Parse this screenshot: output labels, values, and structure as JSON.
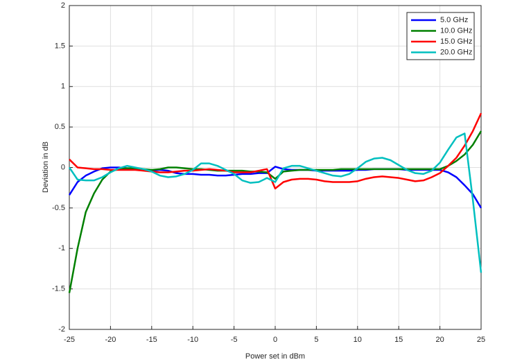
{
  "chart_data": {
    "type": "line",
    "xlabel": "Power set in dBm",
    "ylabel": "Deviation  in dB",
    "xlim": [
      -25,
      25
    ],
    "ylim": [
      -2,
      2
    ],
    "xticks": [
      -25,
      -20,
      -15,
      -10,
      -5,
      0,
      5,
      10,
      15,
      20,
      25
    ],
    "yticks": [
      -2,
      -1.5,
      -1,
      -0.5,
      0,
      0.5,
      1,
      1.5,
      2
    ],
    "grid": true,
    "legend": "top-right",
    "x": [
      -25,
      -24,
      -23,
      -22,
      -21,
      -20,
      -19,
      -18,
      -17,
      -16,
      -15,
      -14,
      -13,
      -12,
      -11,
      -10,
      -9,
      -8,
      -7,
      -6,
      -5,
      -4,
      -3,
      -2,
      -1,
      0,
      1,
      2,
      3,
      4,
      5,
      6,
      7,
      8,
      9,
      10,
      11,
      12,
      13,
      14,
      15,
      16,
      17,
      18,
      19,
      20,
      21,
      22,
      23,
      24,
      25
    ],
    "series": [
      {
        "name": "5.0 GHz",
        "color": "#0000ff",
        "values": [
          -0.34,
          -0.18,
          -0.1,
          -0.05,
          -0.01,
          0.0,
          0.0,
          -0.01,
          -0.02,
          -0.03,
          -0.04,
          -0.03,
          -0.04,
          -0.07,
          -0.08,
          -0.08,
          -0.09,
          -0.09,
          -0.1,
          -0.1,
          -0.09,
          -0.08,
          -0.08,
          -0.07,
          -0.07,
          0.01,
          -0.02,
          -0.03,
          -0.03,
          -0.03,
          -0.04,
          -0.04,
          -0.04,
          -0.04,
          -0.04,
          -0.03,
          -0.03,
          -0.02,
          -0.02,
          -0.02,
          -0.02,
          -0.03,
          -0.03,
          -0.03,
          -0.03,
          -0.03,
          -0.06,
          -0.12,
          -0.22,
          -0.33,
          -0.5
        ]
      },
      {
        "name": "10.0 GHz",
        "color": "#008000",
        "values": [
          -1.55,
          -1.0,
          -0.55,
          -0.32,
          -0.15,
          -0.05,
          -0.02,
          -0.01,
          -0.01,
          -0.02,
          -0.03,
          -0.02,
          0.0,
          0.0,
          -0.01,
          -0.02,
          -0.02,
          -0.03,
          -0.04,
          -0.04,
          -0.04,
          -0.04,
          -0.05,
          -0.05,
          -0.06,
          -0.14,
          -0.05,
          -0.04,
          -0.03,
          -0.03,
          -0.03,
          -0.03,
          -0.03,
          -0.02,
          -0.02,
          -0.02,
          -0.02,
          -0.02,
          -0.02,
          -0.02,
          -0.02,
          -0.02,
          -0.02,
          -0.02,
          -0.02,
          -0.02,
          0.02,
          0.08,
          0.16,
          0.28,
          0.45
        ]
      },
      {
        "name": "15.0 GHz",
        "color": "#ff0000",
        "values": [
          0.1,
          0.0,
          -0.01,
          -0.02,
          -0.02,
          -0.03,
          -0.03,
          -0.03,
          -0.03,
          -0.04,
          -0.05,
          -0.06,
          -0.06,
          -0.05,
          -0.04,
          -0.04,
          -0.03,
          -0.02,
          -0.03,
          -0.04,
          -0.06,
          -0.06,
          -0.06,
          -0.04,
          -0.02,
          -0.26,
          -0.18,
          -0.15,
          -0.14,
          -0.14,
          -0.15,
          -0.17,
          -0.18,
          -0.18,
          -0.18,
          -0.17,
          -0.14,
          -0.12,
          -0.11,
          -0.12,
          -0.13,
          -0.15,
          -0.17,
          -0.16,
          -0.12,
          -0.07,
          0.02,
          0.12,
          0.27,
          0.45,
          0.67
        ]
      },
      {
        "name": "20.0 GHz",
        "color": "#00bfbf",
        "values": [
          0.0,
          -0.15,
          -0.16,
          -0.16,
          -0.12,
          -0.06,
          -0.01,
          0.02,
          0.0,
          -0.02,
          -0.05,
          -0.1,
          -0.12,
          -0.11,
          -0.08,
          -0.03,
          0.05,
          0.05,
          0.02,
          -0.03,
          -0.08,
          -0.16,
          -0.19,
          -0.18,
          -0.13,
          -0.18,
          -0.01,
          0.02,
          0.02,
          -0.01,
          -0.04,
          -0.07,
          -0.1,
          -0.11,
          -0.08,
          -0.01,
          0.07,
          0.11,
          0.12,
          0.09,
          0.03,
          -0.03,
          -0.07,
          -0.08,
          -0.04,
          0.06,
          0.22,
          0.37,
          0.42,
          -0.4,
          -1.3
        ]
      }
    ]
  }
}
